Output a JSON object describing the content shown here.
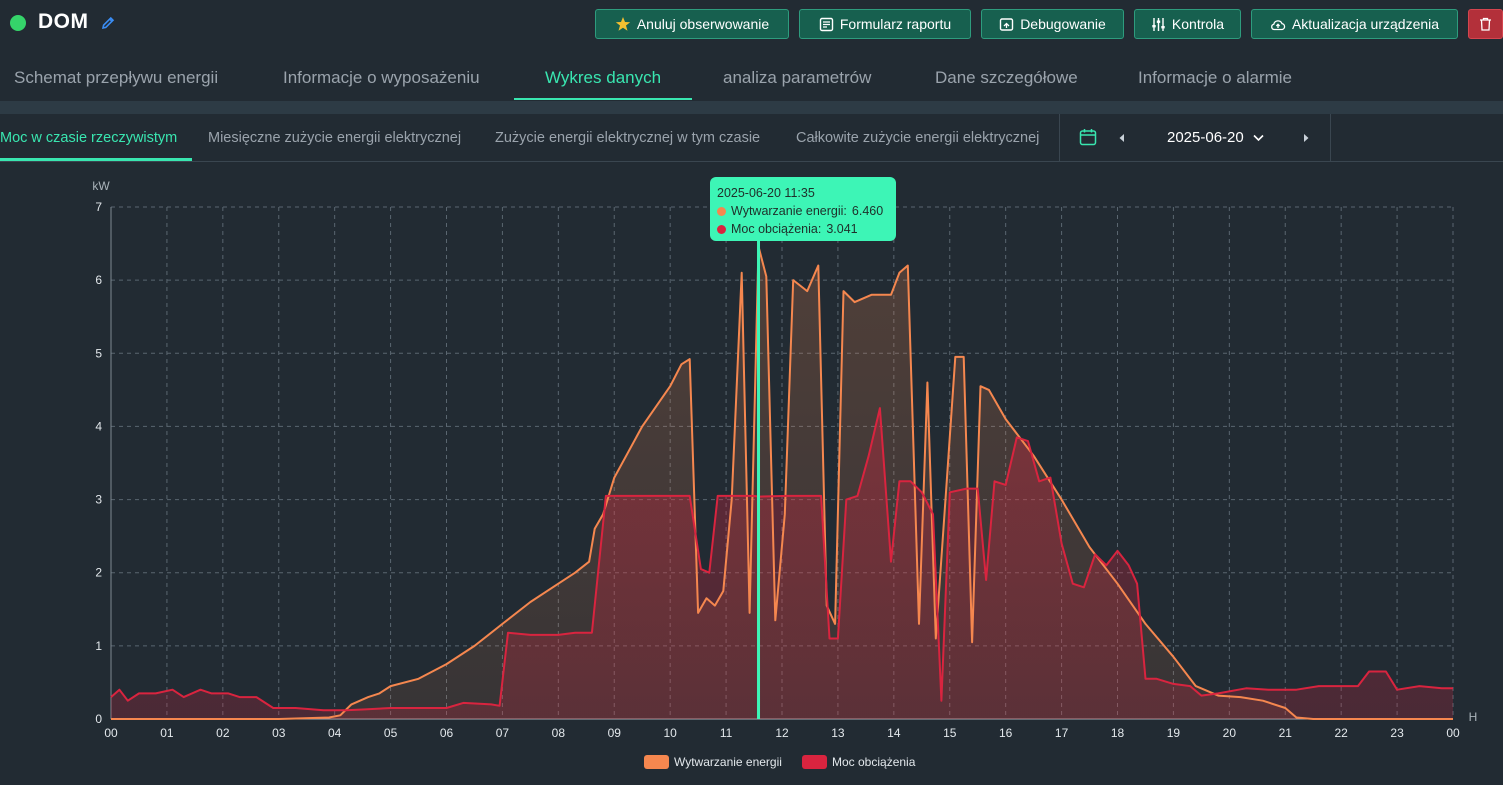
{
  "header": {
    "device_name": "DOM",
    "buttons": {
      "unfollow": "Anuluj obserwowanie",
      "report_form": "Formularz raportu",
      "debug": "Debugowanie",
      "control": "Kontrola",
      "device_update": "Aktualizacja urządzenia"
    }
  },
  "main_tabs": [
    "Schemat przepływu energii",
    "Informacje o wyposażeniu",
    "Wykres danych",
    "analiza parametrów",
    "Dane szczegółowe",
    "Informacje o alarmie"
  ],
  "sub_tabs": [
    "Moc w czasie rzeczywistym",
    "Miesięczne zużycie energii elektrycznej",
    "Zużycie energii elektrycznej w tym czasie",
    "Całkowite zużycie energii elektrycznej"
  ],
  "date_picker": {
    "value": "2025-06-20"
  },
  "tooltip": {
    "time": "2025-06-20 11:35",
    "gen_label": "Wytwarzanie energii:",
    "gen_value": "6.460",
    "load_label": "Moc obciążenia:",
    "load_value": "3.041"
  },
  "colors": {
    "accent": "#39e6b0",
    "generation": "#f5874f",
    "load": "#d9243f"
  },
  "chart_data": {
    "type": "area",
    "ylabel": "kW",
    "xlabel": "H",
    "ylim": [
      0,
      7
    ],
    "yticks": [
      "0",
      "1",
      "2",
      "3",
      "4",
      "5",
      "6",
      "7"
    ],
    "xticks": [
      "00",
      "01",
      "02",
      "03",
      "04",
      "05",
      "06",
      "07",
      "08",
      "09",
      "10",
      "11",
      "12",
      "13",
      "14",
      "15",
      "16",
      "17",
      "18",
      "19",
      "20",
      "21",
      "22",
      "23",
      "00"
    ],
    "cursor_x": 11.58,
    "legend": [
      "Wytwarzanie energii",
      "Moc obciążenia"
    ],
    "series": [
      {
        "name": "Wytwarzanie energii",
        "color": "#f5874f",
        "points": [
          [
            0,
            0
          ],
          [
            1,
            0
          ],
          [
            2,
            0
          ],
          [
            3,
            0
          ],
          [
            3.9,
            0.02
          ],
          [
            4.1,
            0.05
          ],
          [
            4.3,
            0.2
          ],
          [
            4.6,
            0.3
          ],
          [
            4.8,
            0.35
          ],
          [
            5,
            0.45
          ],
          [
            5.5,
            0.55
          ],
          [
            6,
            0.75
          ],
          [
            6.5,
            1.0
          ],
          [
            7,
            1.3
          ],
          [
            7.5,
            1.6
          ],
          [
            8,
            1.85
          ],
          [
            8.3,
            2.0
          ],
          [
            8.55,
            2.15
          ],
          [
            8.65,
            2.6
          ],
          [
            8.8,
            2.8
          ],
          [
            9.0,
            3.3
          ],
          [
            9.5,
            4.0
          ],
          [
            10.0,
            4.55
          ],
          [
            10.2,
            4.85
          ],
          [
            10.35,
            4.92
          ],
          [
            10.5,
            1.45
          ],
          [
            10.65,
            1.65
          ],
          [
            10.8,
            1.55
          ],
          [
            10.95,
            1.75
          ],
          [
            11.1,
            3.0
          ],
          [
            11.28,
            6.1
          ],
          [
            11.42,
            1.45
          ],
          [
            11.58,
            6.46
          ],
          [
            11.72,
            6.05
          ],
          [
            11.88,
            1.35
          ],
          [
            12.05,
            2.8
          ],
          [
            12.2,
            6.0
          ],
          [
            12.45,
            5.85
          ],
          [
            12.65,
            6.2
          ],
          [
            12.8,
            1.55
          ],
          [
            12.95,
            1.3
          ],
          [
            13.1,
            5.85
          ],
          [
            13.3,
            5.7
          ],
          [
            13.6,
            5.8
          ],
          [
            13.95,
            5.8
          ],
          [
            14.1,
            6.1
          ],
          [
            14.25,
            6.2
          ],
          [
            14.45,
            1.3
          ],
          [
            14.6,
            4.6
          ],
          [
            14.75,
            1.1
          ],
          [
            14.95,
            3.3
          ],
          [
            15.1,
            4.95
          ],
          [
            15.25,
            4.95
          ],
          [
            15.4,
            1.05
          ],
          [
            15.55,
            4.55
          ],
          [
            15.7,
            4.5
          ],
          [
            16,
            4.1
          ],
          [
            16.5,
            3.6
          ],
          [
            17,
            3.0
          ],
          [
            17.5,
            2.35
          ],
          [
            18,
            1.85
          ],
          [
            18.5,
            1.3
          ],
          [
            19,
            0.85
          ],
          [
            19.4,
            0.45
          ],
          [
            19.8,
            0.32
          ],
          [
            20.2,
            0.3
          ],
          [
            20.6,
            0.25
          ],
          [
            21.0,
            0.15
          ],
          [
            21.2,
            0.02
          ],
          [
            21.5,
            0
          ],
          [
            22,
            0
          ],
          [
            23,
            0
          ],
          [
            24,
            0
          ]
        ]
      },
      {
        "name": "Moc obciążenia",
        "color": "#d9243f",
        "points": [
          [
            0,
            0.3
          ],
          [
            0.15,
            0.4
          ],
          [
            0.3,
            0.25
          ],
          [
            0.5,
            0.35
          ],
          [
            0.8,
            0.35
          ],
          [
            1.1,
            0.4
          ],
          [
            1.3,
            0.3
          ],
          [
            1.6,
            0.4
          ],
          [
            1.8,
            0.35
          ],
          [
            2.1,
            0.35
          ],
          [
            2.3,
            0.3
          ],
          [
            2.6,
            0.3
          ],
          [
            2.9,
            0.15
          ],
          [
            3.3,
            0.15
          ],
          [
            3.8,
            0.12
          ],
          [
            4.2,
            0.12
          ],
          [
            4.5,
            0.13
          ],
          [
            5,
            0.15
          ],
          [
            5.5,
            0.15
          ],
          [
            6,
            0.15
          ],
          [
            6.3,
            0.22
          ],
          [
            6.8,
            0.2
          ],
          [
            6.95,
            0.18
          ],
          [
            7.1,
            1.18
          ],
          [
            7.5,
            1.15
          ],
          [
            8,
            1.15
          ],
          [
            8.3,
            1.18
          ],
          [
            8.6,
            1.18
          ],
          [
            8.85,
            3.05
          ],
          [
            9.2,
            3.05
          ],
          [
            10.35,
            3.05
          ],
          [
            10.55,
            2.05
          ],
          [
            10.7,
            2.0
          ],
          [
            10.85,
            3.05
          ],
          [
            11.5,
            3.05
          ],
          [
            11.58,
            3.04
          ],
          [
            12.1,
            3.05
          ],
          [
            12.7,
            3.05
          ],
          [
            12.85,
            1.1
          ],
          [
            13.0,
            1.1
          ],
          [
            13.15,
            3.0
          ],
          [
            13.35,
            3.05
          ],
          [
            13.55,
            3.6
          ],
          [
            13.75,
            4.25
          ],
          [
            13.95,
            2.15
          ],
          [
            14.1,
            3.25
          ],
          [
            14.3,
            3.25
          ],
          [
            14.5,
            3.1
          ],
          [
            14.7,
            2.8
          ],
          [
            14.85,
            0.25
          ],
          [
            15.0,
            3.1
          ],
          [
            15.3,
            3.15
          ],
          [
            15.5,
            3.15
          ],
          [
            15.65,
            1.9
          ],
          [
            15.8,
            3.25
          ],
          [
            16.0,
            3.2
          ],
          [
            16.2,
            3.85
          ],
          [
            16.4,
            3.8
          ],
          [
            16.6,
            3.25
          ],
          [
            16.8,
            3.3
          ],
          [
            17.0,
            2.4
          ],
          [
            17.2,
            1.85
          ],
          [
            17.4,
            1.8
          ],
          [
            17.6,
            2.25
          ],
          [
            17.8,
            2.1
          ],
          [
            18.0,
            2.3
          ],
          [
            18.2,
            2.1
          ],
          [
            18.35,
            1.85
          ],
          [
            18.5,
            0.55
          ],
          [
            18.7,
            0.55
          ],
          [
            19.0,
            0.48
          ],
          [
            19.3,
            0.45
          ],
          [
            19.5,
            0.32
          ],
          [
            19.8,
            0.35
          ],
          [
            20.3,
            0.42
          ],
          [
            20.7,
            0.4
          ],
          [
            21.2,
            0.4
          ],
          [
            21.6,
            0.45
          ],
          [
            22,
            0.45
          ],
          [
            22.3,
            0.45
          ],
          [
            22.5,
            0.65
          ],
          [
            22.8,
            0.65
          ],
          [
            23.0,
            0.4
          ],
          [
            23.4,
            0.45
          ],
          [
            23.8,
            0.42
          ],
          [
            24,
            0.42
          ]
        ]
      }
    ]
  }
}
